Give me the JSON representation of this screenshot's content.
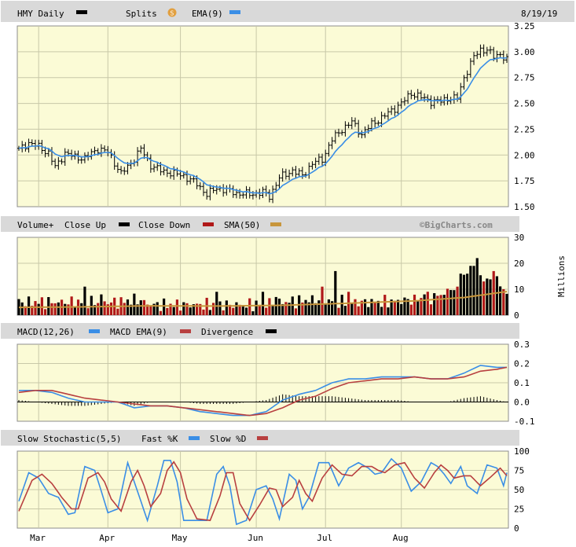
{
  "chart_data": [
    {
      "type": "ohlc",
      "title": "HMY Daily",
      "date": "8/19/19",
      "legend": [
        {
          "name": "HMY Daily",
          "color": "#000000"
        },
        {
          "name": "Splits",
          "icon": "splits-icon",
          "color": "#e2a040"
        },
        {
          "name": "EMA(9)",
          "color": "#3a8ee6"
        }
      ],
      "ylim": [
        1.5,
        3.25
      ],
      "yticks": [
        "3.25",
        "3.00",
        "2.75",
        "2.50",
        "2.25",
        "2.00",
        "1.75",
        "1.50"
      ],
      "close_keypoints": [
        [
          0,
          2.05
        ],
        [
          3,
          2.12
        ],
        [
          6,
          2.08
        ],
        [
          9,
          2.02
        ],
        [
          11,
          1.88
        ],
        [
          14,
          2.02
        ],
        [
          17,
          1.98
        ],
        [
          20,
          1.97
        ],
        [
          24,
          2.06
        ],
        [
          27,
          2.03
        ],
        [
          31,
          1.82
        ],
        [
          34,
          1.92
        ],
        [
          37,
          2.06
        ],
        [
          40,
          1.9
        ],
        [
          43,
          1.85
        ],
        [
          47,
          1.82
        ],
        [
          50,
          1.8
        ],
        [
          54,
          1.72
        ],
        [
          57,
          1.62
        ],
        [
          60,
          1.68
        ],
        [
          63,
          1.66
        ],
        [
          66,
          1.63
        ],
        [
          70,
          1.62
        ],
        [
          74,
          1.64
        ],
        [
          76,
          1.6
        ],
        [
          79,
          1.78
        ],
        [
          83,
          1.85
        ],
        [
          86,
          1.8
        ],
        [
          89,
          1.92
        ],
        [
          92,
          1.96
        ],
        [
          95,
          2.15
        ],
        [
          98,
          2.25
        ],
        [
          101,
          2.32
        ],
        [
          104,
          2.2
        ],
        [
          107,
          2.3
        ],
        [
          110,
          2.36
        ],
        [
          113,
          2.43
        ],
        [
          116,
          2.5
        ],
        [
          119,
          2.6
        ],
        [
          122,
          2.56
        ],
        [
          125,
          2.52
        ],
        [
          128,
          2.52
        ],
        [
          130,
          2.55
        ],
        [
          133,
          2.55
        ],
        [
          135,
          2.75
        ],
        [
          138,
          2.95
        ],
        [
          140,
          3.02
        ],
        [
          142,
          3.02
        ],
        [
          144,
          2.95
        ],
        [
          146,
          2.98
        ],
        [
          148,
          2.92
        ]
      ],
      "ema_color": "#3a8ee6"
    },
    {
      "type": "bar",
      "title": "Volume+",
      "legend": [
        {
          "name": "Close Up",
          "color": "#000000"
        },
        {
          "name": "Close Down",
          "color": "#b01818"
        },
        {
          "name": "SMA(50)",
          "color": "#c8963c"
        }
      ],
      "credit": "©BigCharts.com",
      "ylabel": "Millions",
      "ylim": [
        0,
        30
      ],
      "yticks": [
        "30",
        "20",
        "10",
        "0"
      ],
      "volume_keypoints": [
        [
          0,
          5
        ],
        [
          10,
          5
        ],
        [
          20,
          5
        ],
        [
          30,
          5
        ],
        [
          36,
          6
        ],
        [
          40,
          4
        ],
        [
          50,
          4
        ],
        [
          60,
          4
        ],
        [
          70,
          4
        ],
        [
          80,
          5
        ],
        [
          90,
          6
        ],
        [
          100,
          5
        ],
        [
          110,
          5
        ],
        [
          120,
          6
        ],
        [
          126,
          7
        ],
        [
          130,
          9
        ],
        [
          133,
          12
        ],
        [
          135,
          15
        ],
        [
          137,
          18
        ],
        [
          140,
          16
        ],
        [
          143,
          13
        ],
        [
          146,
          9
        ],
        [
          148,
          7
        ]
      ],
      "volume_spikes": [
        [
          20,
          11
        ],
        [
          25,
          8
        ],
        [
          60,
          9
        ],
        [
          74,
          9
        ],
        [
          78,
          7
        ],
        [
          92,
          11
        ],
        [
          96,
          17
        ],
        [
          100,
          9
        ],
        [
          123,
          8
        ],
        [
          133,
          11
        ],
        [
          134,
          16
        ],
        [
          137,
          19
        ],
        [
          138,
          19
        ],
        [
          139,
          22
        ],
        [
          141,
          13
        ],
        [
          144,
          17
        ],
        [
          145,
          15
        ],
        [
          147,
          10
        ]
      ],
      "sma_keypoints": [
        [
          0,
          3
        ],
        [
          20,
          3.2
        ],
        [
          40,
          3.6
        ],
        [
          60,
          3.5
        ],
        [
          80,
          3.8
        ],
        [
          100,
          4.6
        ],
        [
          120,
          5.5
        ],
        [
          135,
          6.8
        ],
        [
          148,
          9.1
        ]
      ]
    },
    {
      "type": "line",
      "title": "MACD(12,26)",
      "legend": [
        {
          "name": "MACD(12,26)",
          "color": "#3a8ee6"
        },
        {
          "name": "MACD EMA(9)",
          "color": "#b84040"
        },
        {
          "name": "Divergence",
          "color": "#000000"
        }
      ],
      "ylim": [
        -0.1,
        0.3
      ],
      "yticks": [
        "0.3",
        "0.2",
        "0.1",
        "0.0",
        "-0.1"
      ],
      "macd_keypoints": [
        [
          0,
          0.06
        ],
        [
          5,
          0.06
        ],
        [
          10,
          0.05
        ],
        [
          15,
          0.02
        ],
        [
          20,
          0.0
        ],
        [
          25,
          0.0
        ],
        [
          30,
          0.0
        ],
        [
          35,
          -0.03
        ],
        [
          40,
          -0.02
        ],
        [
          45,
          -0.02
        ],
        [
          50,
          -0.03
        ],
        [
          55,
          -0.05
        ],
        [
          60,
          -0.06
        ],
        [
          65,
          -0.07
        ],
        [
          70,
          -0.07
        ],
        [
          75,
          -0.05
        ],
        [
          80,
          0.01
        ],
        [
          85,
          0.04
        ],
        [
          90,
          0.06
        ],
        [
          95,
          0.1
        ],
        [
          100,
          0.12
        ],
        [
          105,
          0.12
        ],
        [
          110,
          0.13
        ],
        [
          115,
          0.13
        ],
        [
          120,
          0.13
        ],
        [
          125,
          0.12
        ],
        [
          130,
          0.12
        ],
        [
          135,
          0.15
        ],
        [
          140,
          0.19
        ],
        [
          145,
          0.18
        ],
        [
          148,
          0.18
        ]
      ],
      "signal_keypoints": [
        [
          0,
          0.05
        ],
        [
          5,
          0.06
        ],
        [
          10,
          0.06
        ],
        [
          15,
          0.04
        ],
        [
          20,
          0.02
        ],
        [
          25,
          0.01
        ],
        [
          30,
          0.0
        ],
        [
          35,
          -0.01
        ],
        [
          40,
          -0.02
        ],
        [
          45,
          -0.02
        ],
        [
          50,
          -0.03
        ],
        [
          55,
          -0.04
        ],
        [
          60,
          -0.05
        ],
        [
          65,
          -0.06
        ],
        [
          70,
          -0.07
        ],
        [
          75,
          -0.06
        ],
        [
          80,
          -0.03
        ],
        [
          85,
          0.01
        ],
        [
          90,
          0.03
        ],
        [
          95,
          0.07
        ],
        [
          100,
          0.1
        ],
        [
          105,
          0.11
        ],
        [
          110,
          0.12
        ],
        [
          115,
          0.12
        ],
        [
          120,
          0.13
        ],
        [
          125,
          0.12
        ],
        [
          130,
          0.12
        ],
        [
          135,
          0.13
        ],
        [
          140,
          0.16
        ],
        [
          145,
          0.17
        ],
        [
          148,
          0.18
        ]
      ]
    },
    {
      "type": "line",
      "title": "Slow Stochastic(5,5)",
      "legend": [
        {
          "name": "Slow Stochastic(5,5)",
          "color": "#000000"
        },
        {
          "name": "Fast %K",
          "color": "#3a8ee6"
        },
        {
          "name": "Slow %D",
          "color": "#b84040"
        }
      ],
      "ylim": [
        0,
        100
      ],
      "yticks": [
        "100",
        "75",
        "50",
        "25",
        "0"
      ],
      "k_keypoints": [
        [
          0,
          35
        ],
        [
          3,
          72
        ],
        [
          6,
          65
        ],
        [
          9,
          45
        ],
        [
          12,
          40
        ],
        [
          15,
          18
        ],
        [
          17,
          20
        ],
        [
          20,
          80
        ],
        [
          23,
          75
        ],
        [
          25,
          48
        ],
        [
          27,
          20
        ],
        [
          30,
          25
        ],
        [
          33,
          85
        ],
        [
          35,
          60
        ],
        [
          37,
          35
        ],
        [
          39,
          10
        ],
        [
          42,
          55
        ],
        [
          44,
          88
        ],
        [
          46,
          88
        ],
        [
          48,
          60
        ],
        [
          50,
          10
        ],
        [
          53,
          10
        ],
        [
          57,
          10
        ],
        [
          60,
          70
        ],
        [
          62,
          80
        ],
        [
          64,
          55
        ],
        [
          66,
          5
        ],
        [
          69,
          10
        ],
        [
          72,
          50
        ],
        [
          75,
          55
        ],
        [
          77,
          38
        ],
        [
          79,
          12
        ],
        [
          82,
          70
        ],
        [
          84,
          62
        ],
        [
          86,
          25
        ],
        [
          88,
          40
        ],
        [
          91,
          85
        ],
        [
          94,
          85
        ],
        [
          97,
          55
        ],
        [
          100,
          78
        ],
        [
          103,
          85
        ],
        [
          106,
          78
        ],
        [
          108,
          70
        ],
        [
          110,
          72
        ],
        [
          113,
          90
        ],
        [
          116,
          78
        ],
        [
          119,
          48
        ],
        [
          122,
          60
        ],
        [
          125,
          85
        ],
        [
          127,
          80
        ],
        [
          129,
          70
        ],
        [
          131,
          58
        ],
        [
          134,
          80
        ],
        [
          136,
          55
        ],
        [
          139,
          45
        ],
        [
          142,
          82
        ],
        [
          145,
          78
        ],
        [
          147,
          55
        ],
        [
          148,
          72
        ]
      ],
      "d_keypoints": [
        [
          0,
          22
        ],
        [
          4,
          62
        ],
        [
          7,
          70
        ],
        [
          10,
          58
        ],
        [
          13,
          40
        ],
        [
          16,
          25
        ],
        [
          18,
          25
        ],
        [
          21,
          65
        ],
        [
          24,
          72
        ],
        [
          26,
          60
        ],
        [
          28,
          38
        ],
        [
          31,
          22
        ],
        [
          34,
          60
        ],
        [
          36,
          75
        ],
        [
          38,
          55
        ],
        [
          40,
          28
        ],
        [
          43,
          45
        ],
        [
          45,
          75
        ],
        [
          47,
          86
        ],
        [
          49,
          72
        ],
        [
          51,
          38
        ],
        [
          54,
          12
        ],
        [
          58,
          10
        ],
        [
          61,
          42
        ],
        [
          63,
          72
        ],
        [
          65,
          72
        ],
        [
          67,
          32
        ],
        [
          70,
          10
        ],
        [
          73,
          30
        ],
        [
          76,
          52
        ],
        [
          78,
          50
        ],
        [
          80,
          28
        ],
        [
          83,
          40
        ],
        [
          85,
          62
        ],
        [
          87,
          45
        ],
        [
          89,
          35
        ],
        [
          92,
          65
        ],
        [
          95,
          82
        ],
        [
          98,
          70
        ],
        [
          101,
          68
        ],
        [
          104,
          80
        ],
        [
          107,
          80
        ],
        [
          109,
          75
        ],
        [
          111,
          72
        ],
        [
          114,
          82
        ],
        [
          117,
          85
        ],
        [
          120,
          65
        ],
        [
          123,
          52
        ],
        [
          126,
          72
        ],
        [
          128,
          82
        ],
        [
          130,
          75
        ],
        [
          132,
          65
        ],
        [
          135,
          68
        ],
        [
          137,
          68
        ],
        [
          140,
          55
        ],
        [
          143,
          66
        ],
        [
          146,
          78
        ],
        [
          148,
          68
        ]
      ],
      "xticks": [
        {
          "label": "Mar",
          "i": 6
        },
        {
          "label": "Apr",
          "i": 27
        },
        {
          "label": "May",
          "i": 49
        },
        {
          "label": "Jun",
          "i": 72
        },
        {
          "label": "Jul",
          "i": 93
        },
        {
          "label": "Aug",
          "i": 116
        }
      ]
    }
  ]
}
